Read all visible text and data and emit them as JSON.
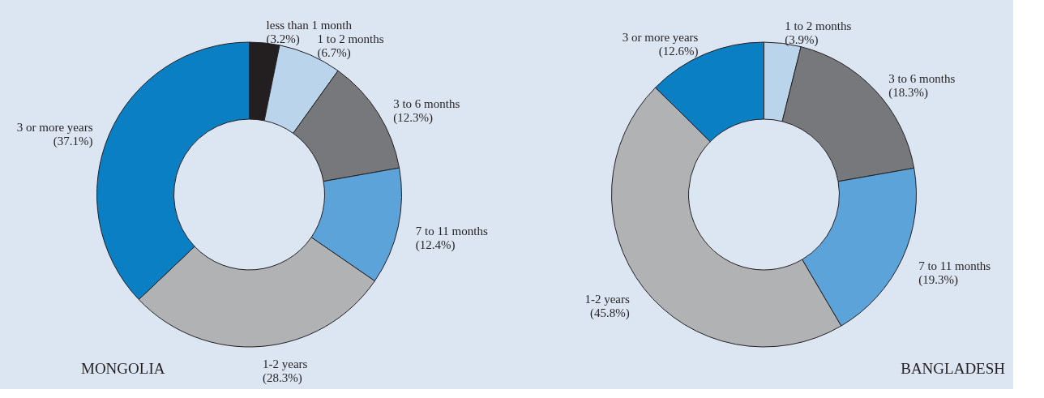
{
  "chart_data": [
    {
      "type": "donut",
      "title": "MONGOLIA",
      "categories": [
        "less than 1 month",
        "1 to 2 months",
        "3 to 6 months",
        "7  to 11 months",
        "1-2 years",
        "3 or more years"
      ],
      "values": [
        3.2,
        6.7,
        12.3,
        12.4,
        28.3,
        37.1
      ],
      "colors": [
        "#231f20",
        "#bad4ec",
        "#77787b",
        "#5ba3d9",
        "#b1b2b4",
        "#0a7fc4"
      ],
      "value_labels": [
        "(3.2%)",
        "(6.7%)",
        "(12.3%)",
        "(12.4%)",
        "(28.3%)",
        "(37.1%)"
      ],
      "legend": false
    },
    {
      "type": "donut",
      "title": "BANGLADESH",
      "categories": [
        "1 to 2 months",
        "3 to 6 months",
        "7  to 11 months",
        "1-2 years",
        "3 or more years"
      ],
      "values": [
        3.9,
        18.3,
        19.3,
        45.8,
        12.6
      ],
      "colors": [
        "#bad4ec",
        "#77787b",
        "#5ba3d9",
        "#b1b2b4",
        "#0a7fc4"
      ],
      "value_labels": [
        "(3.9%)",
        "(18.3%)",
        "(19.3%)",
        "(45.8%)",
        "(12.6%)"
      ],
      "legend": false
    }
  ]
}
